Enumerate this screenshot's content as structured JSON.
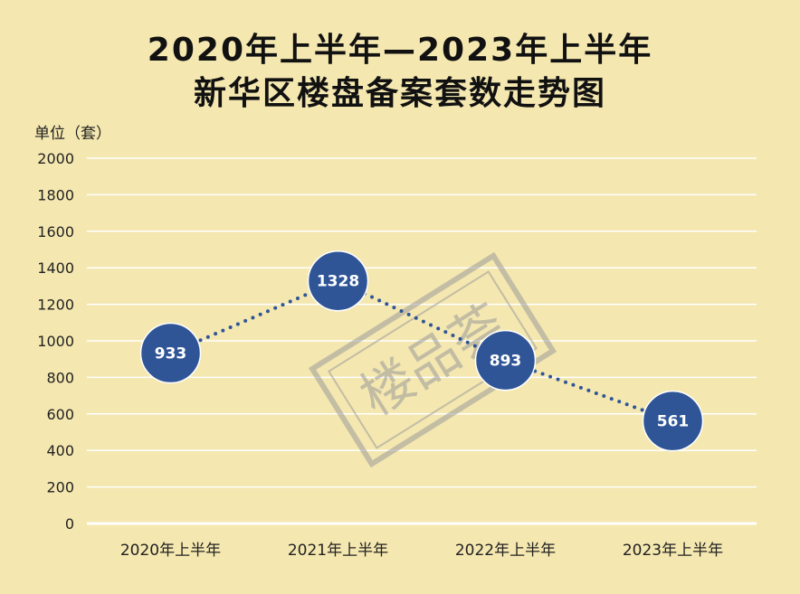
{
  "title_line1": "2020年上半年—2023年上半年",
  "title_line2": "新华区楼盘备案套数走势图",
  "unit_label": "单位（套）",
  "watermark": "楼品荟",
  "colors": {
    "background": "#f4e7b0",
    "marker": "#2f5597",
    "grid": "#ffffff",
    "line": "#2f5597"
  },
  "chart_data": {
    "type": "line",
    "title": "2020年上半年—2023年上半年 新华区楼盘备案套数走势图",
    "ylabel": "单位（套）",
    "categories": [
      "2020年上半年",
      "2021年上半年",
      "2022年上半年",
      "2023年上半年"
    ],
    "values": [
      933,
      1328,
      893,
      561
    ],
    "ylim": [
      0,
      2000
    ],
    "yticks": [
      0,
      200,
      400,
      600,
      800,
      1000,
      1200,
      1400,
      1600,
      1800,
      2000
    ],
    "grid": true,
    "line_style": "dotted",
    "marker": "circle-with-value-label"
  }
}
